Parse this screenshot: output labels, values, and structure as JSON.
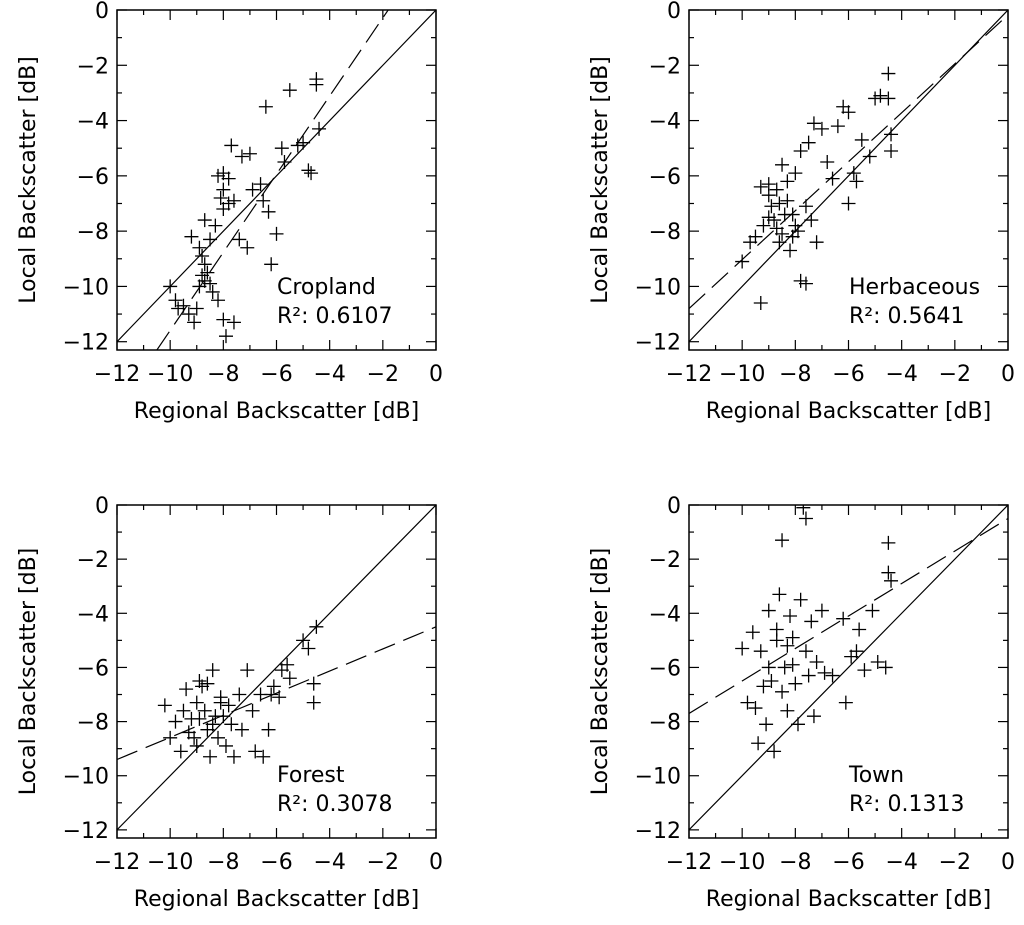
{
  "chart_data": [
    {
      "type": "scatter",
      "panel": "Cropland",
      "xlabel": "Regional Backscatter [dB]",
      "ylabel": "Local Backscatter [dB]",
      "xlim": [
        -12,
        0
      ],
      "ylim": [
        -12.3,
        0
      ],
      "xticks": [
        "-12",
        "-10",
        "-8",
        "-6",
        "-4",
        "-2",
        "0"
      ],
      "yticks": [
        "0",
        "-2",
        "-4",
        "-6",
        "-8",
        "-10",
        "-12"
      ],
      "label": "Cropland",
      "r2_text": "R²: 0.6107",
      "identity_line": {
        "x": [
          -12,
          0
        ],
        "y": [
          -12,
          0
        ]
      },
      "fit_line": {
        "x": [
          -10.5,
          -1.8
        ],
        "y": [
          -12.3,
          0
        ]
      },
      "points": [
        {
          "x": -10.0,
          "y": -10.0
        },
        {
          "x": -9.8,
          "y": -10.5
        },
        {
          "x": -9.7,
          "y": -10.8
        },
        {
          "x": -9.5,
          "y": -10.7
        },
        {
          "x": -9.3,
          "y": -11.0
        },
        {
          "x": -9.1,
          "y": -11.3
        },
        {
          "x": -9.0,
          "y": -10.8
        },
        {
          "x": -8.9,
          "y": -10.0
        },
        {
          "x": -8.8,
          "y": -9.6
        },
        {
          "x": -8.7,
          "y": -9.8
        },
        {
          "x": -9.2,
          "y": -8.2
        },
        {
          "x": -8.9,
          "y": -8.6
        },
        {
          "x": -8.8,
          "y": -8.9
        },
        {
          "x": -8.7,
          "y": -9.2
        },
        {
          "x": -8.6,
          "y": -9.5
        },
        {
          "x": -8.5,
          "y": -9.9
        },
        {
          "x": -8.4,
          "y": -10.2
        },
        {
          "x": -8.2,
          "y": -10.5
        },
        {
          "x": -8.0,
          "y": -11.2
        },
        {
          "x": -7.6,
          "y": -11.3
        },
        {
          "x": -7.9,
          "y": -11.8
        },
        {
          "x": -8.7,
          "y": -7.6
        },
        {
          "x": -8.5,
          "y": -8.3
        },
        {
          "x": -8.3,
          "y": -7.8
        },
        {
          "x": -8.0,
          "y": -7.2
        },
        {
          "x": -7.8,
          "y": -7.0
        },
        {
          "x": -7.6,
          "y": -6.9
        },
        {
          "x": -8.1,
          "y": -6.8
        },
        {
          "x": -8.0,
          "y": -6.5
        },
        {
          "x": -8.2,
          "y": -6.0
        },
        {
          "x": -8.0,
          "y": -5.9
        },
        {
          "x": -7.8,
          "y": -6.1
        },
        {
          "x": -7.7,
          "y": -4.9
        },
        {
          "x": -7.3,
          "y": -5.3
        },
        {
          "x": -7.0,
          "y": -5.2
        },
        {
          "x": -6.9,
          "y": -6.5
        },
        {
          "x": -6.6,
          "y": -6.3
        },
        {
          "x": -6.5,
          "y": -6.9
        },
        {
          "x": -6.3,
          "y": -7.3
        },
        {
          "x": -6.0,
          "y": -8.1
        },
        {
          "x": -6.2,
          "y": -9.2
        },
        {
          "x": -7.4,
          "y": -8.3
        },
        {
          "x": -7.1,
          "y": -8.6
        },
        {
          "x": -6.4,
          "y": -3.5
        },
        {
          "x": -5.8,
          "y": -5.0
        },
        {
          "x": -5.7,
          "y": -5.5
        },
        {
          "x": -5.5,
          "y": -2.9
        },
        {
          "x": -5.2,
          "y": -4.9
        },
        {
          "x": -5.0,
          "y": -4.8
        },
        {
          "x": -4.8,
          "y": -5.8
        },
        {
          "x": -4.7,
          "y": -5.9
        },
        {
          "x": -4.5,
          "y": -2.5
        },
        {
          "x": -4.5,
          "y": -2.7
        },
        {
          "x": -4.4,
          "y": -4.3
        }
      ]
    },
    {
      "type": "scatter",
      "panel": "Herbaceous",
      "xlabel": "Regional Backscatter [dB]",
      "ylabel": "Local Backscatter [dB]",
      "xlim": [
        -12,
        0
      ],
      "ylim": [
        -12.3,
        0
      ],
      "xticks": [
        "-12",
        "-10",
        "-8",
        "-6",
        "-4",
        "-2",
        "0"
      ],
      "yticks": [
        "0",
        "-2",
        "-4",
        "-6",
        "-8",
        "-10",
        "-12"
      ],
      "label": "Herbaceous",
      "r2_text": "R²: 0.5641",
      "identity_line": {
        "x": [
          -12,
          0
        ],
        "y": [
          -12,
          0
        ]
      },
      "fit_line": {
        "x": [
          -12,
          0.2
        ],
        "y": [
          -10.8,
          0
        ]
      },
      "points": [
        {
          "x": -10.0,
          "y": -9.1
        },
        {
          "x": -9.7,
          "y": -8.4
        },
        {
          "x": -9.5,
          "y": -8.2
        },
        {
          "x": -9.3,
          "y": -10.6
        },
        {
          "x": -9.2,
          "y": -7.8
        },
        {
          "x": -9.0,
          "y": -7.5
        },
        {
          "x": -9.0,
          "y": -6.7
        },
        {
          "x": -8.9,
          "y": -7.1
        },
        {
          "x": -8.8,
          "y": -7.6
        },
        {
          "x": -8.7,
          "y": -7.9
        },
        {
          "x": -8.6,
          "y": -8.4
        },
        {
          "x": -8.5,
          "y": -8.1
        },
        {
          "x": -8.4,
          "y": -7.4
        },
        {
          "x": -8.3,
          "y": -6.9
        },
        {
          "x": -8.2,
          "y": -8.7
        },
        {
          "x": -8.1,
          "y": -8.2
        },
        {
          "x": -8.0,
          "y": -7.8
        },
        {
          "x": -7.9,
          "y": -8.0
        },
        {
          "x": -7.8,
          "y": -9.8
        },
        {
          "x": -7.6,
          "y": -9.9
        },
        {
          "x": -9.3,
          "y": -6.4
        },
        {
          "x": -9.0,
          "y": -6.3
        },
        {
          "x": -8.7,
          "y": -6.5
        },
        {
          "x": -8.5,
          "y": -5.6
        },
        {
          "x": -8.3,
          "y": -6.2
        },
        {
          "x": -8.0,
          "y": -5.9
        },
        {
          "x": -7.8,
          "y": -5.1
        },
        {
          "x": -7.5,
          "y": -4.8
        },
        {
          "x": -7.3,
          "y": -4.1
        },
        {
          "x": -7.0,
          "y": -4.3
        },
        {
          "x": -6.8,
          "y": -5.5
        },
        {
          "x": -6.6,
          "y": -6.1
        },
        {
          "x": -6.4,
          "y": -4.2
        },
        {
          "x": -7.6,
          "y": -7.1
        },
        {
          "x": -7.4,
          "y": -7.6
        },
        {
          "x": -7.2,
          "y": -8.4
        },
        {
          "x": -6.2,
          "y": -3.5
        },
        {
          "x": -6.0,
          "y": -3.7
        },
        {
          "x": -5.8,
          "y": -5.9
        },
        {
          "x": -5.7,
          "y": -6.2
        },
        {
          "x": -6.0,
          "y": -7.0
        },
        {
          "x": -5.5,
          "y": -4.7
        },
        {
          "x": -5.2,
          "y": -5.3
        },
        {
          "x": -5.0,
          "y": -3.2
        },
        {
          "x": -4.8,
          "y": -3.1
        },
        {
          "x": -4.5,
          "y": -2.3
        },
        {
          "x": -4.5,
          "y": -3.2
        },
        {
          "x": -4.4,
          "y": -4.5
        },
        {
          "x": -4.4,
          "y": -5.1
        },
        {
          "x": -8.1,
          "y": -7.4
        },
        {
          "x": -8.6,
          "y": -7.0
        }
      ]
    },
    {
      "type": "scatter",
      "panel": "Forest",
      "xlabel": "Regional Backscatter [dB]",
      "ylabel": "Local Backscatter [dB]",
      "xlim": [
        -12,
        0
      ],
      "ylim": [
        -12.3,
        0
      ],
      "xticks": [
        "-12",
        "-10",
        "-8",
        "-6",
        "-4",
        "-2",
        "0"
      ],
      "yticks": [
        "0",
        "-2",
        "-4",
        "-6",
        "-8",
        "-10",
        "-12"
      ],
      "label": "Forest",
      "r2_text": "R²: 0.3078",
      "identity_line": {
        "x": [
          -12,
          0
        ],
        "y": [
          -12,
          0
        ]
      },
      "fit_line": {
        "x": [
          -12,
          0
        ],
        "y": [
          -9.4,
          -4.5
        ]
      },
      "points": [
        {
          "x": -10.2,
          "y": -7.4
        },
        {
          "x": -10.0,
          "y": -8.6
        },
        {
          "x": -9.8,
          "y": -8.0
        },
        {
          "x": -9.6,
          "y": -9.1
        },
        {
          "x": -9.5,
          "y": -7.6
        },
        {
          "x": -9.4,
          "y": -6.8
        },
        {
          "x": -9.2,
          "y": -7.9
        },
        {
          "x": -9.1,
          "y": -8.6
        },
        {
          "x": -9.0,
          "y": -7.3
        },
        {
          "x": -8.9,
          "y": -6.5
        },
        {
          "x": -8.8,
          "y": -6.7
        },
        {
          "x": -8.7,
          "y": -7.6
        },
        {
          "x": -8.6,
          "y": -8.3
        },
        {
          "x": -8.5,
          "y": -9.3
        },
        {
          "x": -8.4,
          "y": -8.1
        },
        {
          "x": -8.4,
          "y": -6.1
        },
        {
          "x": -8.3,
          "y": -7.8
        },
        {
          "x": -8.2,
          "y": -8.6
        },
        {
          "x": -8.1,
          "y": -7.1
        },
        {
          "x": -8.0,
          "y": -7.8
        },
        {
          "x": -7.9,
          "y": -8.9
        },
        {
          "x": -7.8,
          "y": -7.4
        },
        {
          "x": -7.7,
          "y": -8.1
        },
        {
          "x": -7.6,
          "y": -9.3
        },
        {
          "x": -7.4,
          "y": -7.0
        },
        {
          "x": -7.3,
          "y": -8.3
        },
        {
          "x": -7.1,
          "y": -6.1
        },
        {
          "x": -6.9,
          "y": -7.6
        },
        {
          "x": -6.8,
          "y": -9.1
        },
        {
          "x": -6.6,
          "y": -7.0
        },
        {
          "x": -6.5,
          "y": -9.3
        },
        {
          "x": -6.3,
          "y": -8.3
        },
        {
          "x": -6.2,
          "y": -7.0
        },
        {
          "x": -6.1,
          "y": -6.7
        },
        {
          "x": -5.9,
          "y": -7.1
        },
        {
          "x": -5.8,
          "y": -6.1
        },
        {
          "x": -5.6,
          "y": -5.9
        },
        {
          "x": -5.5,
          "y": -6.4
        },
        {
          "x": -5.0,
          "y": -5.0
        },
        {
          "x": -4.8,
          "y": -5.3
        },
        {
          "x": -4.6,
          "y": -6.6
        },
        {
          "x": -4.6,
          "y": -7.3
        },
        {
          "x": -4.5,
          "y": -4.5
        },
        {
          "x": -9.3,
          "y": -8.4
        },
        {
          "x": -8.9,
          "y": -7.9
        },
        {
          "x": -8.6,
          "y": -6.6
        },
        {
          "x": -8.1,
          "y": -7.3
        },
        {
          "x": -9.0,
          "y": -8.9
        }
      ]
    },
    {
      "type": "scatter",
      "panel": "Town",
      "xlabel": "Regional Backscatter [dB]",
      "ylabel": "Local Backscatter [dB]",
      "xlim": [
        -12,
        0
      ],
      "ylim": [
        -12.3,
        0
      ],
      "xticks": [
        "-12",
        "-10",
        "-8",
        "-6",
        "-4",
        "-2",
        "0"
      ],
      "yticks": [
        "0",
        "-2",
        "-4",
        "-6",
        "-8",
        "-10",
        "-12"
      ],
      "label": "Town",
      "r2_text": "R²: 0.1313",
      "identity_line": {
        "x": [
          -12,
          0
        ],
        "y": [
          -12,
          0
        ]
      },
      "fit_line": {
        "x": [
          -12,
          0
        ],
        "y": [
          -7.7,
          -0.5
        ]
      },
      "points": [
        {
          "x": -10.0,
          "y": -5.3
        },
        {
          "x": -9.8,
          "y": -7.3
        },
        {
          "x": -9.6,
          "y": -4.7
        },
        {
          "x": -9.5,
          "y": -7.5
        },
        {
          "x": -9.4,
          "y": -8.8
        },
        {
          "x": -9.3,
          "y": -5.4
        },
        {
          "x": -9.2,
          "y": -6.7
        },
        {
          "x": -9.1,
          "y": -8.1
        },
        {
          "x": -9.0,
          "y": -3.9
        },
        {
          "x": -8.9,
          "y": -6.5
        },
        {
          "x": -8.8,
          "y": -9.1
        },
        {
          "x": -8.7,
          "y": -5.0
        },
        {
          "x": -8.6,
          "y": -3.3
        },
        {
          "x": -8.5,
          "y": -6.9
        },
        {
          "x": -8.5,
          "y": -1.3
        },
        {
          "x": -8.4,
          "y": -6.0
        },
        {
          "x": -8.3,
          "y": -7.6
        },
        {
          "x": -8.2,
          "y": -4.1
        },
        {
          "x": -8.1,
          "y": -5.9
        },
        {
          "x": -8.0,
          "y": -6.6
        },
        {
          "x": -7.9,
          "y": -8.1
        },
        {
          "x": -7.8,
          "y": -3.5
        },
        {
          "x": -7.7,
          "y": -0.1
        },
        {
          "x": -7.6,
          "y": -0.5
        },
        {
          "x": -7.6,
          "y": -5.4
        },
        {
          "x": -7.5,
          "y": -6.3
        },
        {
          "x": -7.4,
          "y": -4.3
        },
        {
          "x": -7.3,
          "y": -7.8
        },
        {
          "x": -7.2,
          "y": -5.8
        },
        {
          "x": -7.0,
          "y": -3.9
        },
        {
          "x": -6.9,
          "y": -6.2
        },
        {
          "x": -6.6,
          "y": -6.3
        },
        {
          "x": -6.2,
          "y": -4.2
        },
        {
          "x": -6.1,
          "y": -7.3
        },
        {
          "x": -5.9,
          "y": -5.6
        },
        {
          "x": -5.7,
          "y": -5.4
        },
        {
          "x": -5.6,
          "y": -4.6
        },
        {
          "x": -5.4,
          "y": -6.1
        },
        {
          "x": -5.1,
          "y": -3.9
        },
        {
          "x": -4.9,
          "y": -5.8
        },
        {
          "x": -4.6,
          "y": -6.0
        },
        {
          "x": -4.5,
          "y": -1.4
        },
        {
          "x": -4.5,
          "y": -2.5
        },
        {
          "x": -4.4,
          "y": -2.8
        },
        {
          "x": -8.7,
          "y": -4.6
        },
        {
          "x": -8.3,
          "y": -5.2
        },
        {
          "x": -9.0,
          "y": -6.0
        },
        {
          "x": -8.1,
          "y": -4.9
        }
      ]
    }
  ]
}
